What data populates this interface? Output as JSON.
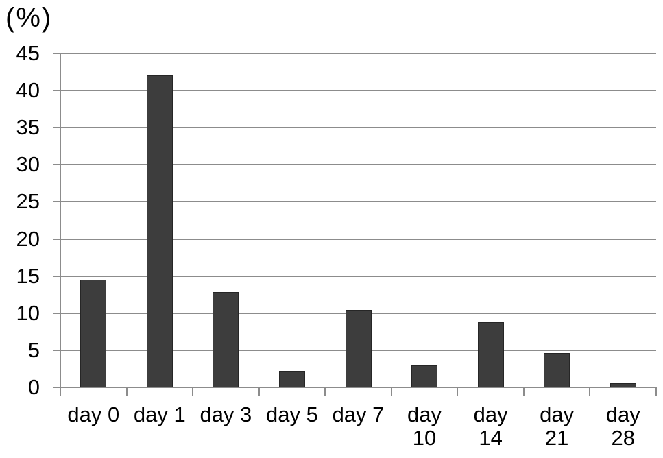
{
  "chart_data": {
    "type": "bar",
    "title": "",
    "ylabel": "(%)",
    "xlabel": "",
    "categories": [
      "day 0",
      "day 1",
      "day 3",
      "day 5",
      "day 7",
      "day 10",
      "day 14",
      "day 21",
      "day 28"
    ],
    "tick_label_lines": [
      [
        "day 0"
      ],
      [
        "day 1"
      ],
      [
        "day 3"
      ],
      [
        "day 5"
      ],
      [
        "day 7"
      ],
      [
        "day",
        "10"
      ],
      [
        "day",
        "14"
      ],
      [
        "day",
        "21"
      ],
      [
        "day",
        "28"
      ]
    ],
    "values": [
      14.5,
      42,
      12.8,
      2.2,
      10.4,
      3.0,
      8.8,
      4.6,
      0.6
    ],
    "ylim": [
      0,
      45
    ],
    "y_ticks": [
      0,
      5,
      10,
      15,
      20,
      25,
      30,
      35,
      40,
      45
    ],
    "grid": true,
    "legend": "none",
    "colors": {
      "bar": "#3d3d3d",
      "bar_border": "#262626",
      "gridline": "#8c8c8c",
      "axis": "#8c8c8c",
      "text": "#000000",
      "background": "#ffffff"
    }
  }
}
